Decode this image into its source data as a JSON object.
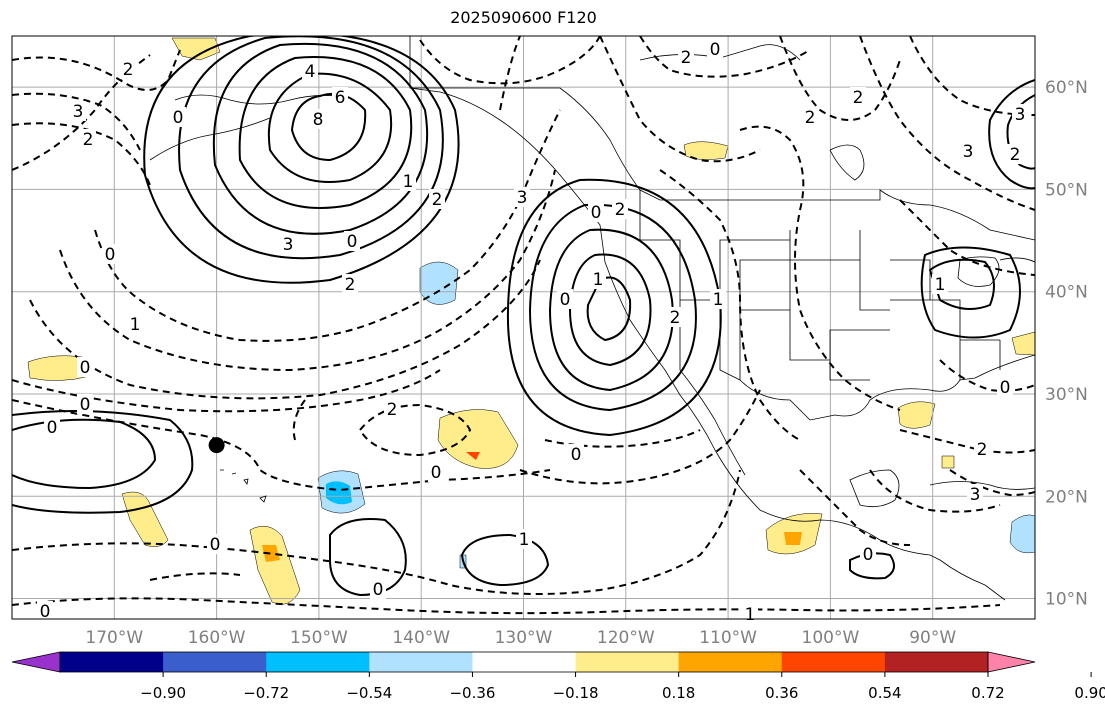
{
  "title": "2025090600 F120",
  "map": {
    "lon_range": [
      -180,
      -80
    ],
    "lat_range": [
      8,
      65
    ],
    "lon_labels": [
      "170°W",
      "160°W",
      "150°W",
      "140°W",
      "130°W",
      "120°W",
      "110°W",
      "100°W",
      "90°W"
    ],
    "lat_labels": [
      "60°N",
      "50°N",
      "40°N",
      "30°N",
      "20°N",
      "10°N"
    ],
    "marker": {
      "lon": -160,
      "lat": 25
    },
    "contour_labels": [
      "3",
      "2",
      "2",
      "0",
      "8",
      "6",
      "4",
      "3",
      "0",
      "1",
      "2",
      "2",
      "3",
      "2",
      "2",
      "3",
      "3",
      "2",
      "2",
      "0",
      "1",
      "0",
      "0",
      "0",
      "0",
      "1",
      "2",
      "1",
      "2",
      "0",
      "0",
      "0",
      "0",
      "1",
      "0",
      "1",
      "0",
      "2",
      "3",
      "0",
      "1",
      "0",
      "2",
      "0"
    ]
  },
  "colorbar": {
    "ticks": [
      "−0.90",
      "−0.72",
      "−0.54",
      "−0.36",
      "−0.18",
      "0.18",
      "0.36",
      "0.54",
      "0.72",
      "0.90"
    ],
    "colors": [
      "#9932cc",
      "#00008b",
      "#3a5fcd",
      "#00bfff",
      "#b0e2ff",
      "#ffffff",
      "#ffec8b",
      "#ffa500",
      "#ff4500",
      "#b22222",
      "#ff82ab"
    ]
  }
}
